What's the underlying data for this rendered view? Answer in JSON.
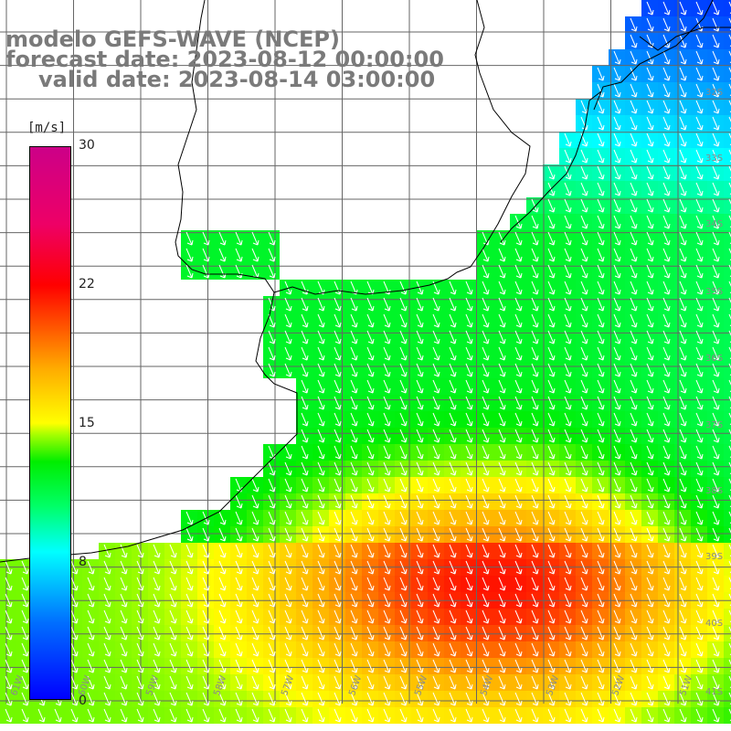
{
  "title": {
    "line1": "modelo GEFS-WAVE (NCEP)",
    "line2": "forecast date: 2023-08-12 00:00:00",
    "line3": "valid date: 2023-08-14 03:00:00"
  },
  "colorbar": {
    "unit": "[m/s]",
    "min": 0,
    "max": 30,
    "ticks": [
      "30",
      "22",
      "15",
      "8",
      "0"
    ]
  },
  "grid": {
    "lat_labels": [
      "32S",
      "33S",
      "34S",
      "35S",
      "36S",
      "37S",
      "38S",
      "39S",
      "40S",
      "41S"
    ],
    "lon_labels": [
      "61W",
      "60W",
      "59W",
      "58W",
      "57W",
      "56W",
      "55W",
      "54W",
      "53W",
      "52W",
      "51W"
    ]
  },
  "colors": {
    "low": "#0070ff",
    "mid": "#00ee00",
    "high": "#ffaa00",
    "land": "#ffffff"
  }
}
